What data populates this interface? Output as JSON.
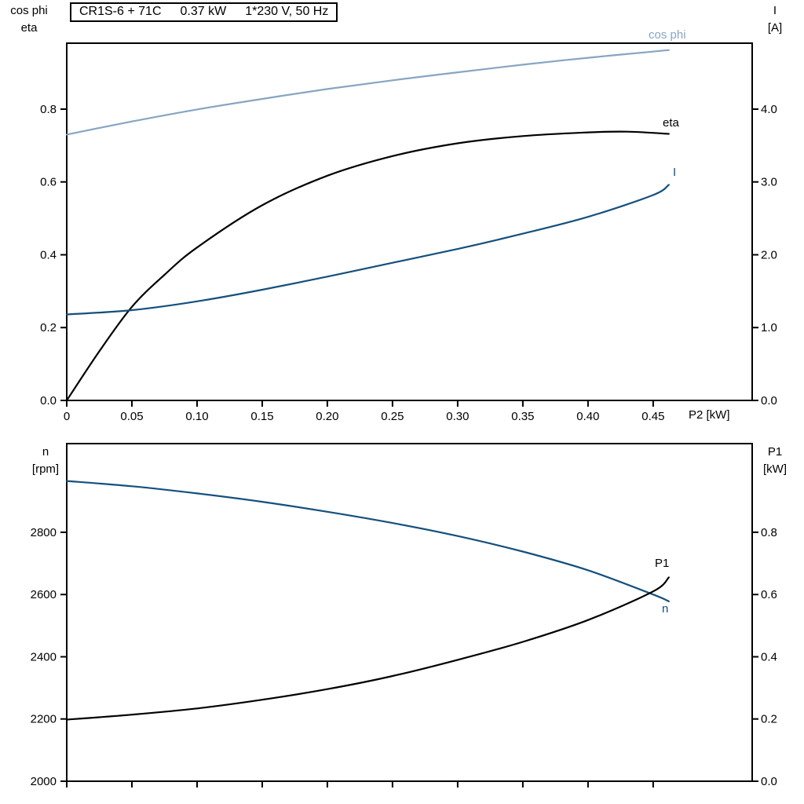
{
  "title_box": {
    "model": "CR1S-6 + 71C",
    "power": "0.37 kW",
    "supply": "1*230 V, 50 Hz"
  },
  "colors": {
    "cos_phi": "#87a5c3",
    "blue": "#14507d",
    "black": "#000000"
  },
  "chart_data": [
    {
      "id": "top",
      "type": "line",
      "x_axis": {
        "label": "P2 [kW]",
        "min": 0,
        "max": 0.526,
        "ticks": [
          0,
          0.05,
          0.1,
          0.15,
          0.2,
          0.25,
          0.3,
          0.35,
          0.4,
          0.45
        ],
        "tick_labels": [
          "0",
          "0.05",
          "0.10",
          "0.15",
          "0.20",
          "0.25",
          "0.30",
          "0.35",
          "0.40",
          "0.45"
        ]
      },
      "y_left": {
        "label_lines": [
          "cos phi",
          "eta"
        ],
        "min": 0,
        "max": 0.981,
        "ticks": [
          0,
          0.2,
          0.4,
          0.6,
          0.8
        ],
        "tick_labels": [
          "0.0",
          "0.2",
          "0.4",
          "0.6",
          "0.8"
        ]
      },
      "y_right": {
        "label_lines": [
          "I",
          "[A]"
        ],
        "min": 0,
        "max": 4.905,
        "ticks": [
          0,
          1,
          2,
          3,
          4
        ],
        "tick_labels": [
          "0.0",
          "1.0",
          "2.0",
          "3.0",
          "4.0"
        ]
      },
      "series": [
        {
          "id": "cos-phi",
          "name": "cos phi",
          "axis": "left",
          "color_key": "cos_phi",
          "x": [
            0,
            0.05,
            0.1,
            0.15,
            0.2,
            0.25,
            0.3,
            0.35,
            0.4,
            0.45,
            0.462
          ],
          "y": [
            0.73,
            0.766,
            0.799,
            0.828,
            0.855,
            0.879,
            0.901,
            0.922,
            0.941,
            0.958,
            0.962
          ]
        },
        {
          "id": "eta",
          "name": "eta",
          "axis": "left",
          "color_key": "black",
          "x": [
            0,
            0.025,
            0.05,
            0.075,
            0.1,
            0.15,
            0.2,
            0.25,
            0.3,
            0.35,
            0.4,
            0.43,
            0.462
          ],
          "y": [
            0,
            0.135,
            0.257,
            0.345,
            0.42,
            0.536,
            0.617,
            0.671,
            0.706,
            0.726,
            0.736,
            0.738,
            0.732
          ]
        },
        {
          "id": "i",
          "name": "I",
          "axis": "right",
          "color_key": "blue",
          "x": [
            0,
            0.05,
            0.1,
            0.15,
            0.2,
            0.25,
            0.3,
            0.35,
            0.4,
            0.45,
            0.462
          ],
          "y": [
            1.18,
            1.24,
            1.36,
            1.52,
            1.7,
            1.89,
            2.08,
            2.29,
            2.52,
            2.82,
            2.96
          ]
        }
      ]
    },
    {
      "id": "bottom",
      "type": "line",
      "x_axis": {
        "label": "",
        "min": 0,
        "max": 0.526,
        "ticks": [
          0,
          0.05,
          0.1,
          0.15,
          0.2,
          0.25,
          0.3,
          0.35,
          0.4,
          0.45
        ],
        "tick_labels": []
      },
      "y_left": {
        "label_lines": [
          "n",
          "[rpm]"
        ],
        "min": 2000,
        "max": 3085,
        "ticks": [
          2000,
          2200,
          2400,
          2600,
          2800
        ],
        "tick_labels": [
          "2000",
          "2200",
          "2400",
          "2600",
          "2800"
        ]
      },
      "y_right": {
        "label_lines": [
          "P1",
          "[kW]"
        ],
        "min": 0,
        "max": 1.085,
        "ticks": [
          0,
          0.2,
          0.4,
          0.6,
          0.8
        ],
        "tick_labels": [
          "0.0",
          "0.2",
          "0.4",
          "0.6",
          "0.8"
        ]
      },
      "series": [
        {
          "id": "n",
          "name": "n",
          "axis": "left",
          "color_key": "blue",
          "x": [
            0,
            0.05,
            0.1,
            0.15,
            0.2,
            0.25,
            0.3,
            0.35,
            0.4,
            0.45,
            0.462
          ],
          "y": [
            2965,
            2948,
            2925,
            2898,
            2866,
            2830,
            2788,
            2738,
            2678,
            2600,
            2578
          ]
        },
        {
          "id": "p1",
          "name": "P1",
          "axis": "right",
          "color_key": "black",
          "x": [
            0,
            0.05,
            0.1,
            0.15,
            0.2,
            0.25,
            0.3,
            0.35,
            0.4,
            0.45,
            0.462
          ],
          "y": [
            0.198,
            0.214,
            0.234,
            0.262,
            0.296,
            0.338,
            0.39,
            0.448,
            0.518,
            0.61,
            0.655
          ]
        }
      ]
    }
  ]
}
